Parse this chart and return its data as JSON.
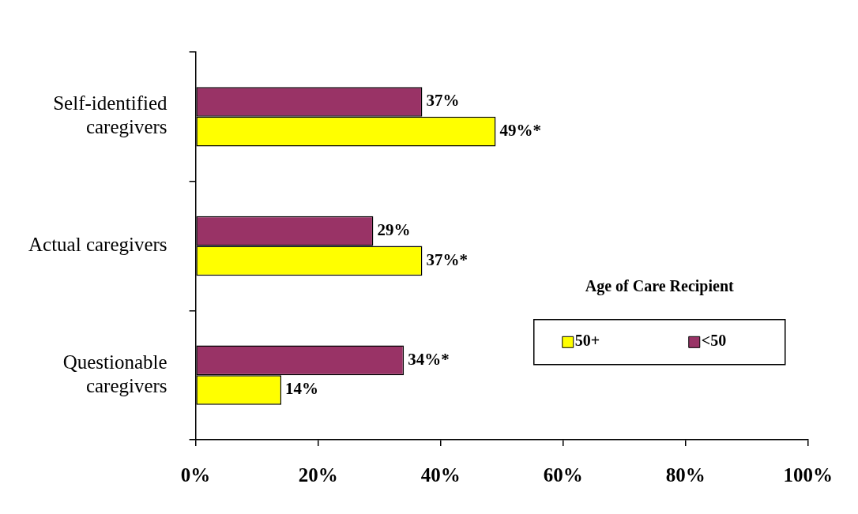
{
  "chart_data": {
    "type": "bar",
    "orientation": "horizontal",
    "categories": [
      "Self-identified caregivers",
      "Actual caregivers",
      "Questionable caregivers"
    ],
    "series": [
      {
        "name": "<50",
        "color": "#993366",
        "values": [
          37,
          29,
          34
        ],
        "value_labels": [
          "37%",
          "29%",
          "34%*"
        ]
      },
      {
        "name": "50+",
        "color": "#ffff00",
        "values": [
          49,
          37,
          14
        ],
        "value_labels": [
          "49%*",
          "37%*",
          "14%"
        ]
      }
    ],
    "xlim": [
      0,
      100
    ],
    "xticks": [
      {
        "value": 0,
        "label": "0%"
      },
      {
        "value": 20,
        "label": "20%"
      },
      {
        "value": 40,
        "label": "40%"
      },
      {
        "value": 60,
        "label": "60%"
      },
      {
        "value": 80,
        "label": "80%"
      },
      {
        "value": 100,
        "label": "100%"
      }
    ],
    "legend": "bottom right",
    "legend_title": "Age of Care Recipient"
  }
}
